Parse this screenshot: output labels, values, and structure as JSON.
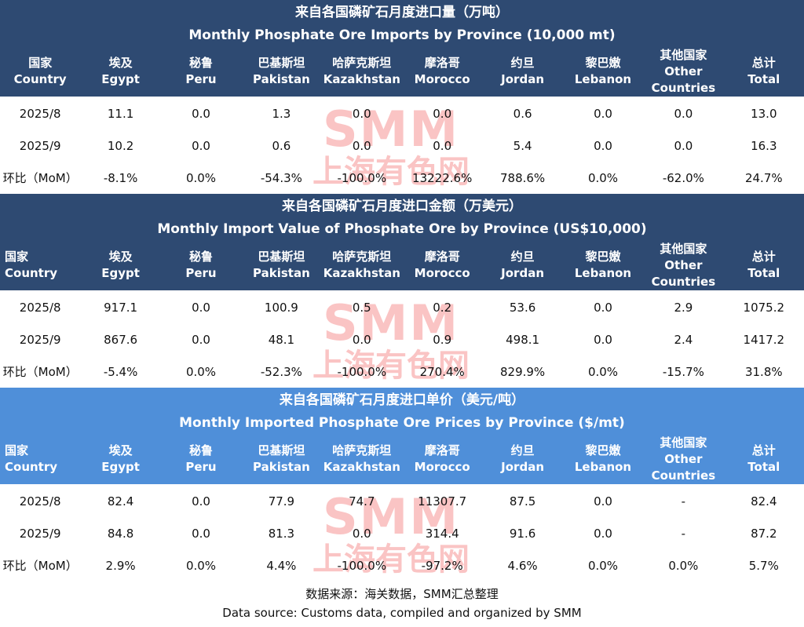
{
  "watermark": {
    "logo": "SMM",
    "text": "上海有色网"
  },
  "tables": [
    {
      "title_cn": "来自各国磷矿石月度进口量（万吨）",
      "title_en": "Monthly Phosphate Ore Imports by Province (10,000 mt)",
      "headers": [
        [
          "国家",
          "Country"
        ],
        [
          "埃及",
          "Egypt"
        ],
        [
          "秘鲁",
          "Peru"
        ],
        [
          "巴基斯坦",
          "Pakistan"
        ],
        [
          "哈萨克斯坦",
          "Kazakhstan"
        ],
        [
          "摩洛哥",
          "Morocco"
        ],
        [
          "约旦",
          "Jordan"
        ],
        [
          "黎巴嫩",
          "Lebanon"
        ],
        [
          "其他国家",
          "Other",
          "Countries"
        ],
        [
          "总计",
          "Total"
        ]
      ],
      "rows": [
        [
          "2025/8",
          "11.1",
          "0.0",
          "1.3",
          "0.0",
          "0.0",
          "0.6",
          "0.0",
          "0.0",
          "13.0"
        ],
        [
          "2025/9",
          "10.2",
          "0.0",
          "0.6",
          "0.0",
          "0.0",
          "5.4",
          "0.0",
          "0.0",
          "16.3"
        ],
        [
          "环比（MoM）",
          "-8.1%",
          "0.0%",
          "-54.3%",
          "-100.0%",
          "13222.6%",
          "788.6%",
          "0.0%",
          "-62.0%",
          "24.7%"
        ]
      ]
    },
    {
      "title_cn": "来自各国磷矿石月度进口金额（万美元）",
      "title_en": "Monthly Import Value of Phosphate Ore by Province (US$10,000)",
      "headers": [
        [
          "国家Country"
        ],
        [
          "埃及",
          "Egypt"
        ],
        [
          "秘鲁",
          "Peru"
        ],
        [
          "巴基斯坦",
          "Pakistan"
        ],
        [
          "哈萨克斯坦",
          "Kazakhstan"
        ],
        [
          "摩洛哥",
          "Morocco"
        ],
        [
          "约旦",
          "Jordan"
        ],
        [
          "黎巴嫩",
          "Lebanon"
        ],
        [
          "其他国家",
          "Other",
          "Countries"
        ],
        [
          "总计",
          "Total"
        ]
      ],
      "rows": [
        [
          "2025/8",
          "917.1",
          "0.0",
          "100.9",
          "0.5",
          "0.2",
          "53.6",
          "0.0",
          "2.9",
          "1075.2"
        ],
        [
          "2025/9",
          "867.6",
          "0.0",
          "48.1",
          "0.0",
          "0.9",
          "498.1",
          "0.0",
          "2.4",
          "1417.2"
        ],
        [
          "环比（MoM）",
          "-5.4%",
          "0.0%",
          "-52.3%",
          "-100.0%",
          "270.4%",
          "829.9%",
          "0.0%",
          "-15.7%",
          "31.8%"
        ]
      ]
    },
    {
      "title_cn": "来自各国磷矿石月度进口单价（美元/吨）",
      "title_en": "Monthly Imported Phosphate Ore Prices by Province ($/mt)",
      "headers": [
        [
          "国家Country"
        ],
        [
          "埃及",
          "Egypt"
        ],
        [
          "秘鲁",
          "Peru"
        ],
        [
          "巴基斯坦",
          "Pakistan"
        ],
        [
          "哈萨克斯坦",
          "Kazakhstan"
        ],
        [
          "摩洛哥",
          "Morocco"
        ],
        [
          "约旦",
          "Jordan"
        ],
        [
          "黎巴嫩",
          "Lebanon"
        ],
        [
          "其他国家",
          "Other",
          "Countries"
        ],
        [
          "总计",
          "Total"
        ]
      ],
      "rows": [
        [
          "2025/8",
          "82.4",
          "0.0",
          "77.9",
          "74.7",
          "11307.7",
          "87.5",
          "0.0",
          "-",
          "82.4"
        ],
        [
          "2025/9",
          "84.8",
          "0.0",
          "81.3",
          "0.0",
          "314.4",
          "91.6",
          "0.0",
          "-",
          "87.2"
        ],
        [
          "环比（MoM）",
          "2.9%",
          "0.0%",
          "4.4%",
          "-100.0%",
          "-97.2%",
          "4.6%",
          "0.0%",
          "0.0%",
          "5.7%"
        ]
      ]
    }
  ],
  "footer": {
    "source_cn": "数据来源：海关数据，SMM汇总整理",
    "source_en": "Data source: Customs data, compiled and organized by SMM"
  }
}
